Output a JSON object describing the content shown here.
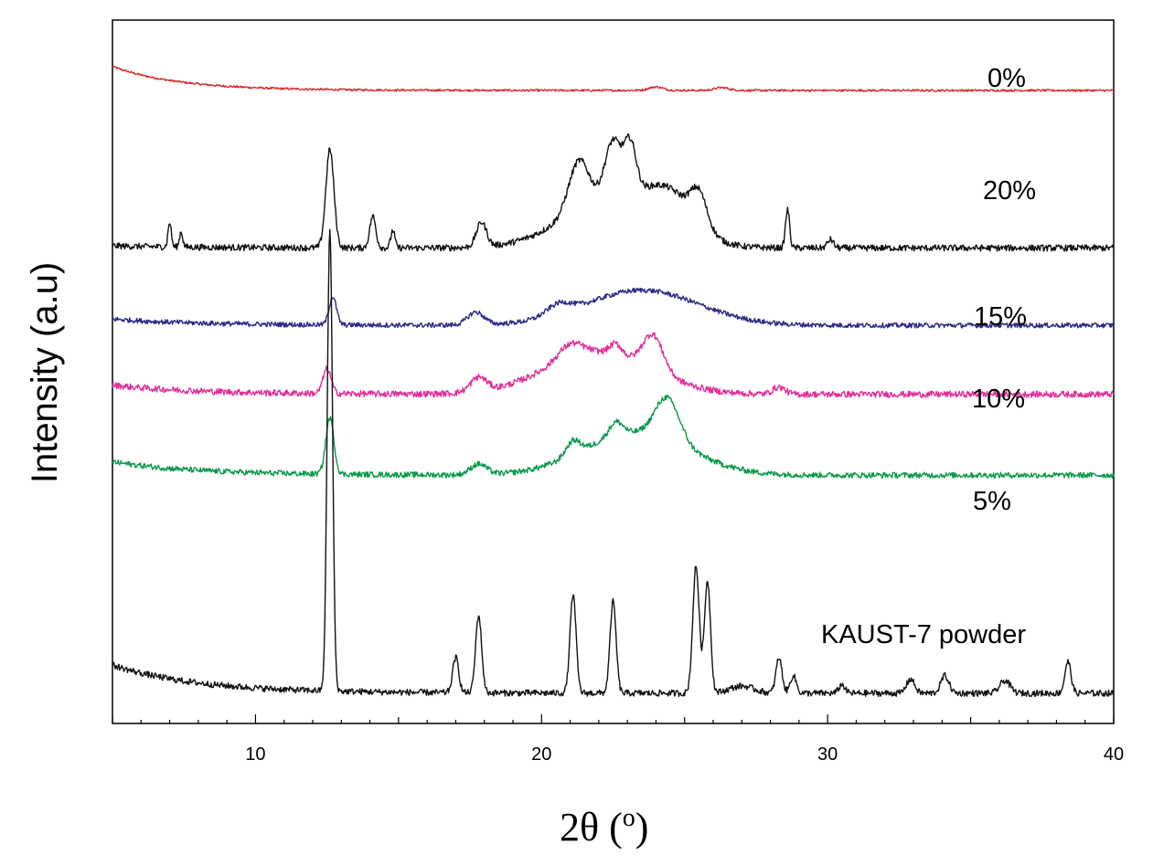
{
  "chart_data": {
    "type": "line",
    "title": "",
    "xlabel": "2θ (o)",
    "xlabel_parts": {
      "main": "2θ (",
      "sup": "o",
      "close": ")"
    },
    "ylabel": "Intensity (a.u)",
    "xlim": [
      5,
      40
    ],
    "ylim": [
      0,
      100
    ],
    "x_ticks": [
      10,
      20,
      30,
      40
    ],
    "y_ticks_shown": false,
    "grid": false,
    "legend": "inline labels beside each curve",
    "series": [
      {
        "name": "0%",
        "color": "#d62b2b",
        "baseline": 90.0,
        "noise": 0.15,
        "decay": [
          3.4,
          2.3
        ],
        "peaks": [
          [
            24,
            0.5,
            0.35
          ],
          [
            26.3,
            0.4,
            0.35
          ]
        ]
      },
      {
        "name": "20%",
        "color": "#111111",
        "baseline": 67.6,
        "noise": 0.45,
        "decay": [
          0.3,
          3.0
        ],
        "peaks": [
          [
            7.0,
            3.5,
            0.08
          ],
          [
            7.4,
            2.2,
            0.08
          ],
          [
            12.6,
            14.0,
            0.2
          ],
          [
            14.1,
            4.5,
            0.15
          ],
          [
            14.8,
            2.5,
            0.1
          ],
          [
            17.9,
            3.5,
            0.25
          ],
          [
            21.3,
            7.0,
            0.5
          ],
          [
            22.5,
            8.0,
            0.4
          ],
          [
            23.1,
            7.0,
            0.3
          ],
          [
            24.5,
            5.0,
            1.2
          ],
          [
            25.5,
            4.5,
            0.4
          ],
          [
            28.6,
            5.5,
            0.1
          ],
          [
            30.1,
            1.2,
            0.15
          ]
        ],
        "hump": [
          22.5,
          7.0,
          2.4
        ]
      },
      {
        "name": "15%",
        "color": "#2e2a86",
        "baseline": 56.6,
        "noise": 0.35,
        "decay": [
          0.9,
          3.0
        ],
        "peaks": [
          [
            12.7,
            4.0,
            0.18
          ],
          [
            17.7,
            1.8,
            0.4
          ],
          [
            20.6,
            1.5,
            0.6
          ]
        ],
        "hump": [
          23.5,
          5.0,
          2.8
        ]
      },
      {
        "name": "10%",
        "color": "#e0309a",
        "baseline": 46.8,
        "noise": 0.45,
        "decay": [
          1.3,
          3.0
        ],
        "peaks": [
          [
            12.5,
            3.5,
            0.2
          ],
          [
            17.8,
            2.0,
            0.4
          ],
          [
            21.0,
            2.0,
            0.6
          ],
          [
            22.6,
            1.5,
            0.3
          ],
          [
            23.9,
            5.0,
            0.5
          ],
          [
            28.3,
            1.0,
            0.3
          ]
        ],
        "hump": [
          22.0,
          6.0,
          2.6
        ]
      },
      {
        "name": "5%",
        "color": "#0a9a4a",
        "baseline": 35.3,
        "noise": 0.4,
        "decay": [
          1.9,
          3.0
        ],
        "peaks": [
          [
            12.6,
            8.0,
            0.2
          ],
          [
            17.8,
            1.5,
            0.4
          ],
          [
            21.1,
            2.0,
            0.35
          ],
          [
            22.6,
            2.0,
            0.35
          ],
          [
            24.4,
            6.0,
            0.6
          ]
        ],
        "hump": [
          23.3,
          6.0,
          2.6
        ]
      },
      {
        "name": "KAUST-7 powder",
        "color": "#111111",
        "baseline": 4.3,
        "noise": 0.45,
        "decay": [
          4.0,
          3.0
        ],
        "peaks": [
          [
            12.6,
            65.5,
            0.13
          ],
          [
            17.0,
            5.0,
            0.15
          ],
          [
            17.8,
            11.0,
            0.15
          ],
          [
            21.1,
            14.0,
            0.15
          ],
          [
            22.5,
            13.0,
            0.15
          ],
          [
            25.4,
            18.0,
            0.16
          ],
          [
            25.8,
            16.0,
            0.15
          ],
          [
            28.3,
            5.0,
            0.15
          ],
          [
            28.8,
            2.5,
            0.15
          ],
          [
            30.5,
            1.2,
            0.15
          ],
          [
            32.9,
            2.0,
            0.2
          ],
          [
            34.1,
            2.5,
            0.2
          ],
          [
            36.2,
            1.8,
            0.25
          ],
          [
            38.4,
            4.5,
            0.15
          ],
          [
            27.0,
            1.0,
            0.6
          ]
        ]
      }
    ]
  }
}
